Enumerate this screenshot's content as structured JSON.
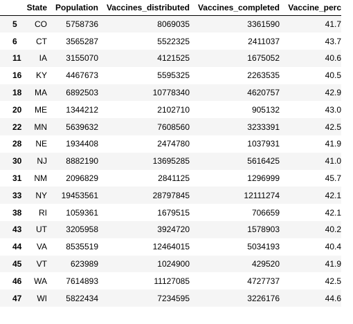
{
  "table": {
    "columns": [
      "",
      "State",
      "Population",
      "Vaccines_distributed",
      "Vaccines_completed",
      "Vaccine_perc"
    ],
    "rows": [
      {
        "index": "5",
        "state": "CO",
        "population": "5758736",
        "distributed": "8069035",
        "completed": "3361590",
        "perc": "41.7"
      },
      {
        "index": "6",
        "state": "CT",
        "population": "3565287",
        "distributed": "5522325",
        "completed": "2411037",
        "perc": "43.7"
      },
      {
        "index": "11",
        "state": "IA",
        "population": "3155070",
        "distributed": "4121525",
        "completed": "1675052",
        "perc": "40.6"
      },
      {
        "index": "16",
        "state": "KY",
        "population": "4467673",
        "distributed": "5595325",
        "completed": "2263535",
        "perc": "40.5"
      },
      {
        "index": "18",
        "state": "MA",
        "population": "6892503",
        "distributed": "10778340",
        "completed": "4620757",
        "perc": "42.9"
      },
      {
        "index": "20",
        "state": "ME",
        "population": "1344212",
        "distributed": "2102710",
        "completed": "905132",
        "perc": "43.0"
      },
      {
        "index": "22",
        "state": "MN",
        "population": "5639632",
        "distributed": "7608560",
        "completed": "3233391",
        "perc": "42.5"
      },
      {
        "index": "28",
        "state": "NE",
        "population": "1934408",
        "distributed": "2474780",
        "completed": "1037931",
        "perc": "41.9"
      },
      {
        "index": "30",
        "state": "NJ",
        "population": "8882190",
        "distributed": "13695285",
        "completed": "5616425",
        "perc": "41.0"
      },
      {
        "index": "31",
        "state": "NM",
        "population": "2096829",
        "distributed": "2841125",
        "completed": "1296999",
        "perc": "45.7"
      },
      {
        "index": "33",
        "state": "NY",
        "population": "19453561",
        "distributed": "28797845",
        "completed": "12111274",
        "perc": "42.1"
      },
      {
        "index": "38",
        "state": "RI",
        "population": "1059361",
        "distributed": "1679515",
        "completed": "706659",
        "perc": "42.1"
      },
      {
        "index": "43",
        "state": "UT",
        "population": "3205958",
        "distributed": "3924720",
        "completed": "1578903",
        "perc": "40.2"
      },
      {
        "index": "44",
        "state": "VA",
        "population": "8535519",
        "distributed": "12464015",
        "completed": "5034193",
        "perc": "40.4"
      },
      {
        "index": "45",
        "state": "VT",
        "population": "623989",
        "distributed": "1024900",
        "completed": "429520",
        "perc": "41.9"
      },
      {
        "index": "46",
        "state": "WA",
        "population": "7614893",
        "distributed": "11127085",
        "completed": "4727737",
        "perc": "42.5"
      },
      {
        "index": "47",
        "state": "WI",
        "population": "5822434",
        "distributed": "7234595",
        "completed": "3226176",
        "perc": "44.6"
      }
    ]
  }
}
